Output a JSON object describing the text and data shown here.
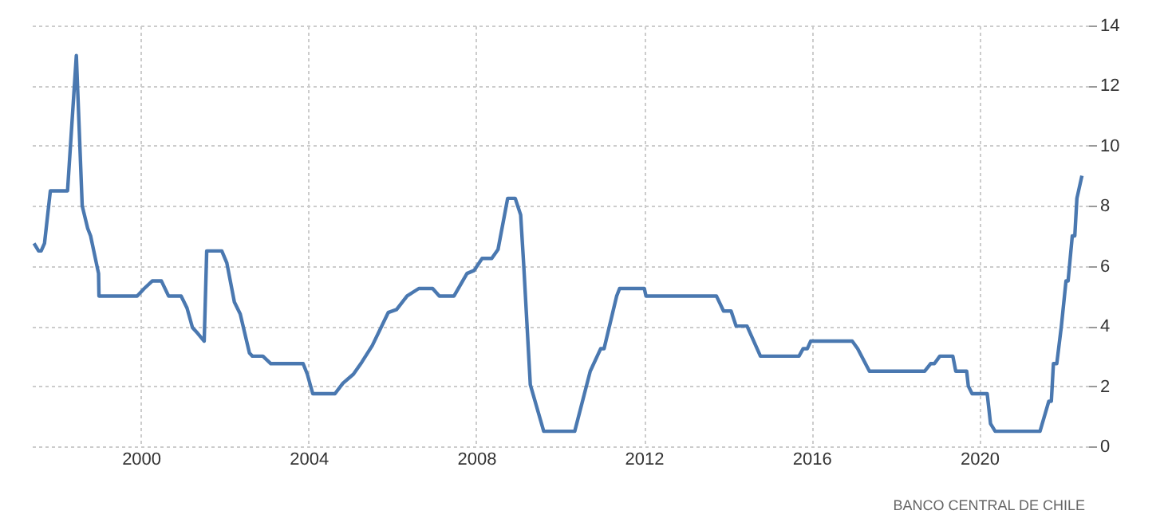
{
  "chart_data": {
    "type": "line",
    "xlim": [
      1997.4,
      2022.6
    ],
    "xticks": [
      2000,
      2004,
      2008,
      2012,
      2016,
      2020
    ],
    "ylim": [
      0,
      14
    ],
    "yticks": [
      0,
      2,
      4,
      6,
      8,
      10,
      12,
      14
    ],
    "grid": true,
    "marker": "none",
    "line_style": "solid",
    "annotations": [
      "BANCO CENTRAL DE CHILE"
    ],
    "series": [
      {
        "color": "#4a78b0",
        "x": [
          1997.45,
          1997.56,
          1997.62,
          1997.7,
          1997.84,
          1998.25,
          1998.46,
          1998.6,
          1998.73,
          1998.8,
          1998.99,
          1999.0,
          1999.91,
          2000.08,
          2000.27,
          2000.49,
          2000.66,
          2000.96,
          2001.1,
          2001.23,
          2001.36,
          2001.51,
          2001.57,
          2001.93,
          2002.05,
          2002.23,
          2002.37,
          2002.59,
          2002.66,
          2002.91,
          2003.1,
          2003.87,
          2003.97,
          2004.1,
          2004.63,
          2004.82,
          2005.07,
          2005.27,
          2005.52,
          2005.9,
          2006.1,
          2006.35,
          2006.63,
          2006.96,
          2007.12,
          2007.47,
          2007.78,
          2007.95,
          2008.14,
          2008.37,
          2008.52,
          2008.75,
          2008.93,
          2009.06,
          2009.13,
          2009.29,
          2009.61,
          2010.35,
          2010.72,
          2010.97,
          2011.05,
          2011.35,
          2011.42,
          2012.01,
          2012.05,
          2013.73,
          2013.9,
          2014.08,
          2014.2,
          2014.46,
          2014.78,
          2015.7,
          2015.8,
          2015.9,
          2015.98,
          2016.97,
          2017.1,
          2017.38,
          2018.7,
          2018.84,
          2018.93,
          2019.06,
          2019.37,
          2019.44,
          2019.7,
          2019.74,
          2019.83,
          2020.19,
          2020.27,
          2020.38,
          2021.45,
          2021.66,
          2021.72,
          2021.77,
          2021.85,
          2021.96,
          2022.07,
          2022.12,
          2022.22,
          2022.28,
          2022.33,
          2022.45
        ],
        "values": [
          6.75,
          6.5,
          6.5,
          6.75,
          8.5,
          8.5,
          13.0,
          8.0,
          7.25,
          7.0,
          5.75,
          5.0,
          5.0,
          5.25,
          5.5,
          5.5,
          5.0,
          5.0,
          4.6,
          3.95,
          3.75,
          3.5,
          6.5,
          6.5,
          6.1,
          4.8,
          4.4,
          3.1,
          3.0,
          3.0,
          2.75,
          2.75,
          2.4,
          1.75,
          1.75,
          2.1,
          2.4,
          2.8,
          3.35,
          4.45,
          4.55,
          5.0,
          5.25,
          5.25,
          5.0,
          5.0,
          5.75,
          5.85,
          6.25,
          6.25,
          6.55,
          8.25,
          8.25,
          7.7,
          6.1,
          2.05,
          0.5,
          0.5,
          2.5,
          3.25,
          3.25,
          5.0,
          5.25,
          5.25,
          5.0,
          5.0,
          4.5,
          4.5,
          4.0,
          4.0,
          3.0,
          3.0,
          3.25,
          3.25,
          3.5,
          3.5,
          3.25,
          2.5,
          2.5,
          2.75,
          2.75,
          3.0,
          3.0,
          2.5,
          2.5,
          2.0,
          1.75,
          1.75,
          0.75,
          0.5,
          0.5,
          1.5,
          1.5,
          2.75,
          2.75,
          4.0,
          5.5,
          5.5,
          7.0,
          7.0,
          8.25,
          9.0
        ]
      }
    ]
  }
}
